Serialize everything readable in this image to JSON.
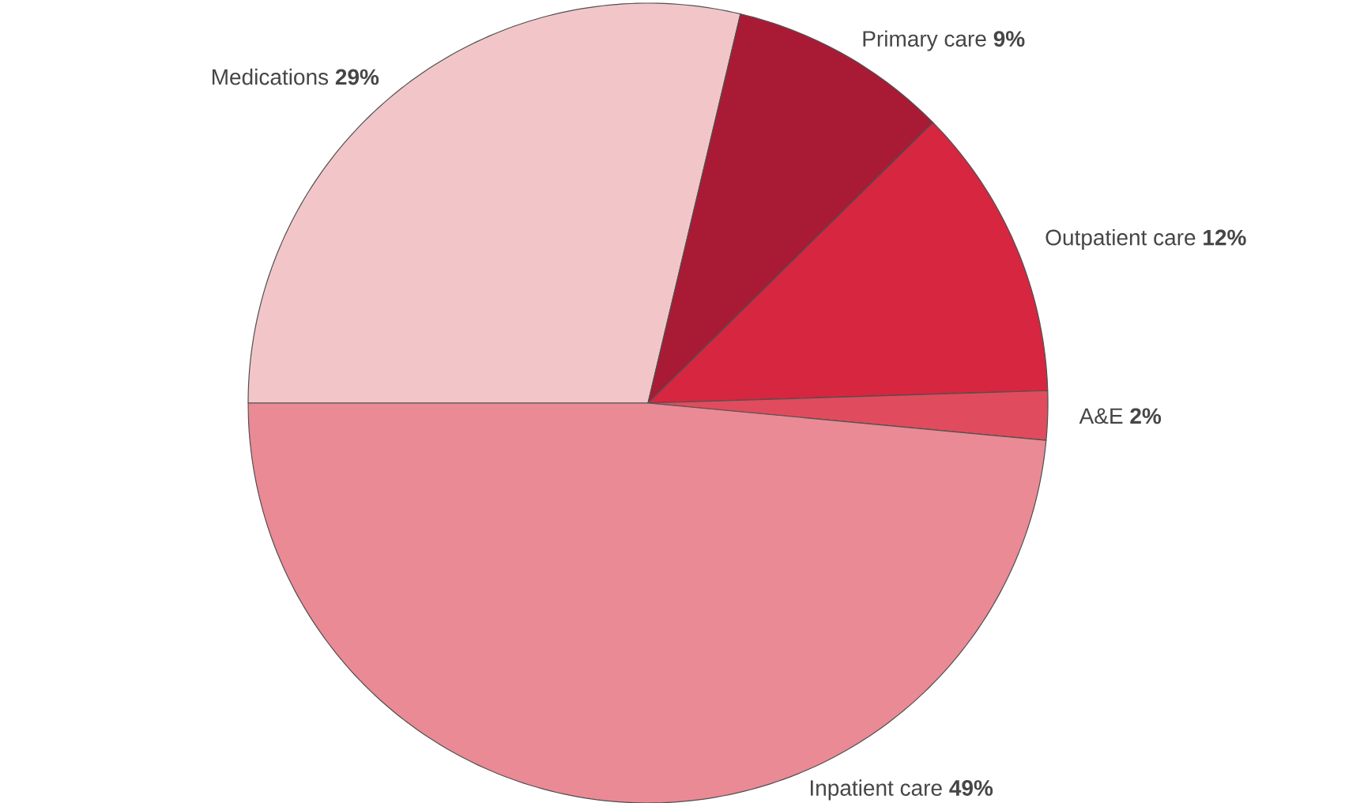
{
  "chart_data": {
    "type": "pie",
    "categories": [
      "Medications",
      "Primary care",
      "Outpatient care",
      "A&E",
      "Inpatient care"
    ],
    "values": [
      29,
      9,
      12,
      2,
      49
    ],
    "colors": [
      "#f2c6c9",
      "#a91b35",
      "#d72640",
      "#e04c5d",
      "#e98a95"
    ],
    "value_labels": [
      "29%",
      "9%",
      "12%",
      "2%",
      "49%"
    ]
  }
}
